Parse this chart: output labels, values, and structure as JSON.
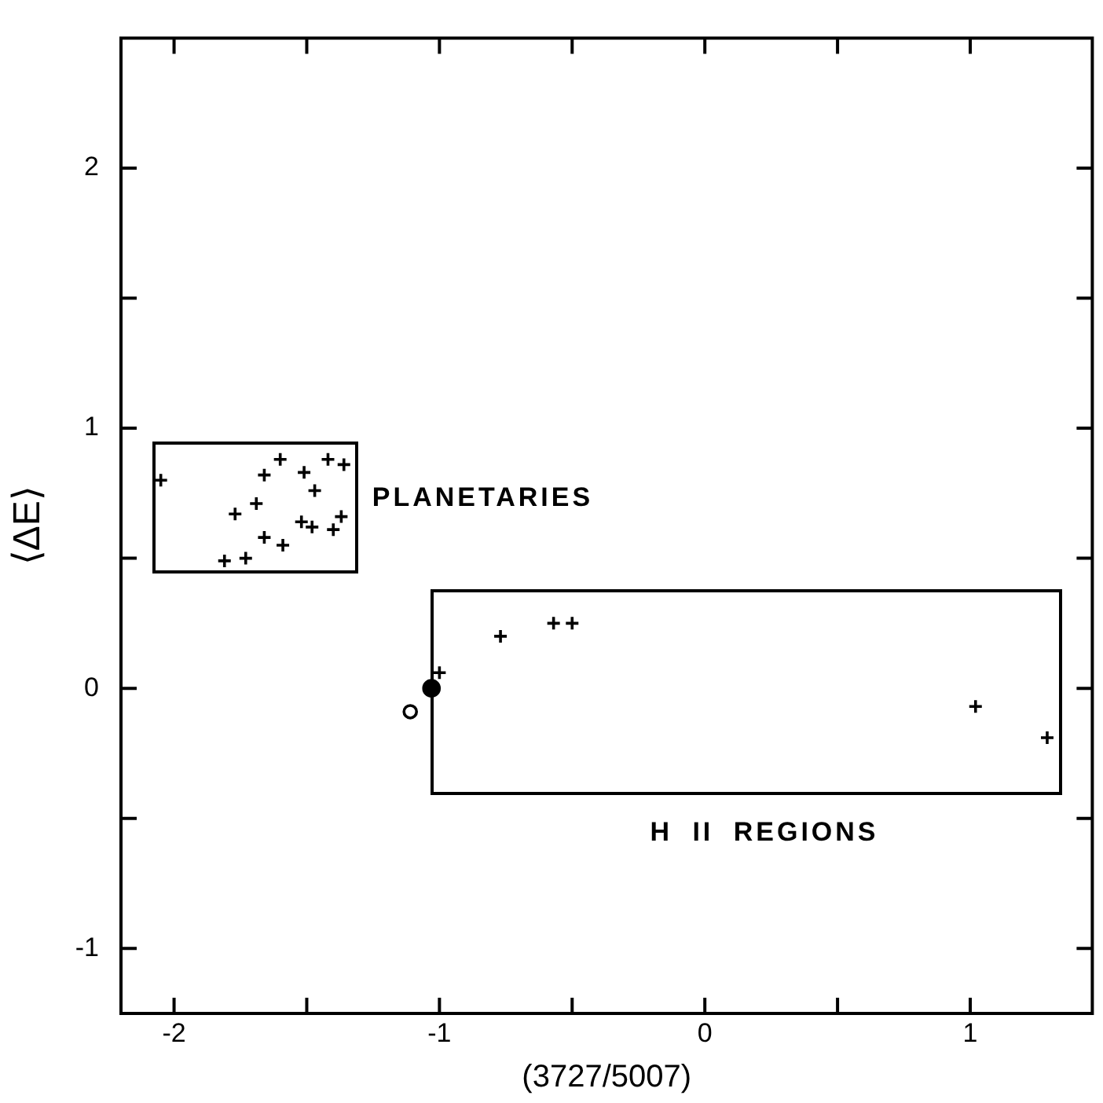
{
  "chart_data": {
    "type": "scatter",
    "xlabel": "(3727/5007)",
    "ylabel": "⟨ΔE⟩",
    "legend": false,
    "grid": false,
    "xlim": [
      -2.2,
      1.46
    ],
    "ylim": [
      -1.25,
      2.5
    ],
    "xticks": [
      -2,
      {
        "value": -1.5,
        "label": null
      },
      -1,
      {
        "value": -0.5,
        "label": null
      },
      0,
      {
        "value": 0.5,
        "label": null
      },
      1
    ],
    "yticks": [
      -1,
      {
        "value": -0.5,
        "label": null
      },
      0,
      {
        "value": 0.5,
        "label": null
      },
      1,
      {
        "value": 1.5,
        "label": null
      },
      2
    ],
    "series": [
      {
        "color": "#000000",
        "marker": "cross",
        "x": [
          -2.05,
          -1.6,
          -1.66,
          -1.51,
          -1.42,
          -1.36,
          -1.47,
          -1.69,
          -1.77,
          -1.37,
          -1.52,
          -1.48,
          -1.4,
          -1.66,
          -1.59,
          -1.73,
          -1.81
        ],
        "values": [
          0.8,
          0.88,
          0.82,
          0.83,
          0.88,
          0.86,
          0.76,
          0.71,
          0.67,
          0.66,
          0.64,
          0.62,
          0.61,
          0.58,
          0.55,
          0.5,
          0.49
        ]
      },
      {
        "color": "#000000",
        "marker": "cross",
        "x": [
          -1.0,
          -0.77,
          -0.57,
          -0.5,
          1.02,
          1.29
        ],
        "values": [
          0.06,
          0.2,
          0.25,
          0.25,
          -0.07,
          -0.19
        ]
      },
      {
        "color": "#000000",
        "marker": "circle",
        "x": [
          -1.03
        ],
        "values": [
          0.0
        ]
      },
      {
        "color": "#000000",
        "marker": "open-circle",
        "x": [
          -1.11
        ],
        "values": [
          -0.09
        ]
      }
    ],
    "annotations": [
      "PLANETARIES",
      "H II REGIONS"
    ]
  }
}
